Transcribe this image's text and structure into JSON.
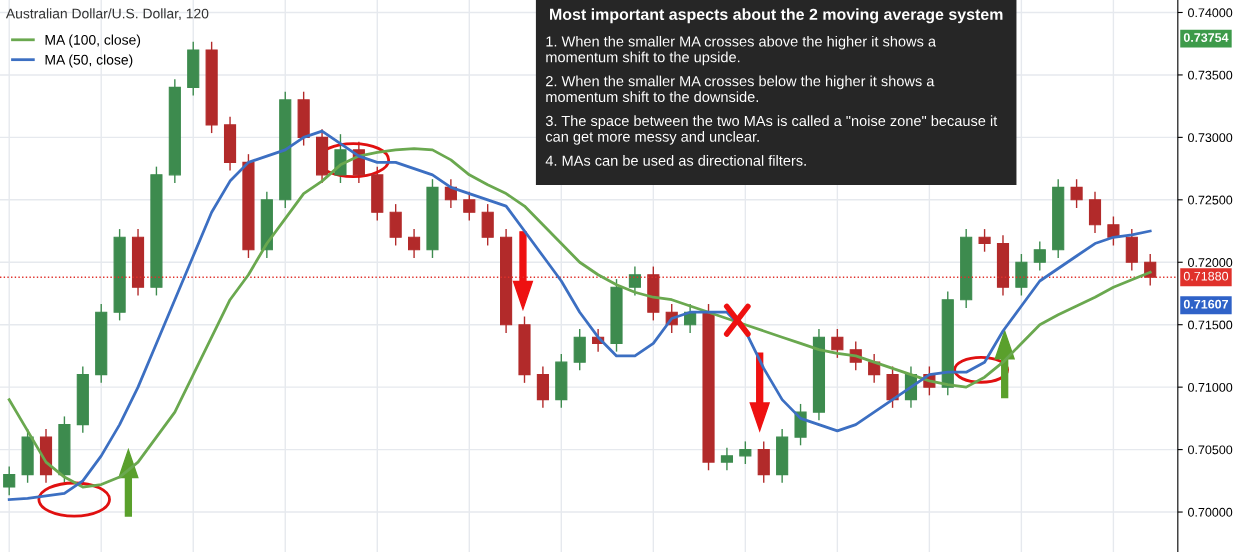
{
  "chart_data": {
    "type": "candlestick",
    "title": "Australian Dollar/U.S. Dollar, 120",
    "categories": [
      null,
      null,
      null,
      null,
      null,
      null,
      null,
      null,
      null,
      null,
      null,
      null,
      null,
      null,
      null,
      null,
      null,
      null,
      null,
      null,
      null,
      null,
      null,
      null,
      null,
      null,
      null,
      null,
      null,
      null,
      null,
      null,
      null,
      null,
      null,
      null,
      null,
      null,
      null,
      null,
      null,
      null,
      null,
      null,
      null,
      null,
      null,
      null,
      null,
      null,
      null,
      null,
      null,
      null,
      null,
      null,
      null,
      null,
      null,
      null,
      null,
      null,
      null
    ],
    "ohlc": [
      [
        0.702,
        0.7036,
        0.7014,
        0.703
      ],
      [
        0.703,
        0.7066,
        0.7024,
        0.706
      ],
      [
        0.706,
        0.7066,
        0.7024,
        0.703
      ],
      [
        0.703,
        0.7076,
        0.7024,
        0.707
      ],
      [
        0.707,
        0.7116,
        0.7064,
        0.711
      ],
      [
        0.711,
        0.7166,
        0.7104,
        0.716
      ],
      [
        0.716,
        0.7226,
        0.7154,
        0.722
      ],
      [
        0.722,
        0.7226,
        0.7174,
        0.718
      ],
      [
        0.718,
        0.7276,
        0.7174,
        0.727
      ],
      [
        0.727,
        0.7346,
        0.7264,
        0.734
      ],
      [
        0.734,
        0.7376,
        0.7334,
        0.737
      ],
      [
        0.737,
        0.7376,
        0.7304,
        0.731
      ],
      [
        0.731,
        0.7316,
        0.7274,
        0.728
      ],
      [
        0.728,
        0.7286,
        0.7204,
        0.721
      ],
      [
        0.721,
        0.7256,
        0.7204,
        0.725
      ],
      [
        0.725,
        0.7336,
        0.7244,
        0.733
      ],
      [
        0.733,
        0.7336,
        0.7294,
        0.73
      ],
      [
        0.73,
        0.7306,
        0.7264,
        0.727
      ],
      [
        0.727,
        0.7302,
        0.7264,
        0.729
      ],
      [
        0.729,
        0.7296,
        0.7264,
        0.727
      ],
      [
        0.727,
        0.7276,
        0.7234,
        0.724
      ],
      [
        0.724,
        0.7246,
        0.7214,
        0.722
      ],
      [
        0.722,
        0.7226,
        0.7204,
        0.721
      ],
      [
        0.721,
        0.7266,
        0.7204,
        0.726
      ],
      [
        0.726,
        0.7266,
        0.7244,
        0.725
      ],
      [
        0.725,
        0.7256,
        0.7234,
        0.724
      ],
      [
        0.724,
        0.7246,
        0.7214,
        0.722
      ],
      [
        0.722,
        0.7226,
        0.7144,
        0.715
      ],
      [
        0.715,
        0.7156,
        0.7104,
        0.711
      ],
      [
        0.711,
        0.7116,
        0.7084,
        0.709
      ],
      [
        0.709,
        0.7126,
        0.7084,
        0.712
      ],
      [
        0.712,
        0.7146,
        0.7114,
        0.714
      ],
      [
        0.714,
        0.7146,
        0.7129,
        0.7135
      ],
      [
        0.7135,
        0.7186,
        0.7129,
        0.718
      ],
      [
        0.718,
        0.7196,
        0.7174,
        0.719
      ],
      [
        0.719,
        0.7196,
        0.7154,
        0.716
      ],
      [
        0.716,
        0.7166,
        0.7144,
        0.715
      ],
      [
        0.715,
        0.7166,
        0.7144,
        0.716
      ],
      [
        0.716,
        0.7166,
        0.7034,
        0.704
      ],
      [
        0.704,
        0.7051,
        0.7034,
        0.7045
      ],
      [
        0.7045,
        0.7056,
        0.7039,
        0.705
      ],
      [
        0.705,
        0.7056,
        0.7024,
        0.703
      ],
      [
        0.703,
        0.7066,
        0.7024,
        0.706
      ],
      [
        0.706,
        0.7086,
        0.7054,
        0.708
      ],
      [
        0.708,
        0.7146,
        0.7074,
        0.714
      ],
      [
        0.714,
        0.7146,
        0.7124,
        0.713
      ],
      [
        0.713,
        0.7136,
        0.7114,
        0.712
      ],
      [
        0.712,
        0.7126,
        0.7104,
        0.711
      ],
      [
        0.711,
        0.7116,
        0.7084,
        0.709
      ],
      [
        0.709,
        0.7116,
        0.7084,
        0.711
      ],
      [
        0.711,
        0.7116,
        0.7094,
        0.71
      ],
      [
        0.71,
        0.7176,
        0.7094,
        0.717
      ],
      [
        0.717,
        0.7226,
        0.7164,
        0.722
      ],
      [
        0.722,
        0.7226,
        0.7209,
        0.7215
      ],
      [
        0.7215,
        0.7221,
        0.7174,
        0.718
      ],
      [
        0.718,
        0.7206,
        0.7174,
        0.72
      ],
      [
        0.72,
        0.7216,
        0.7194,
        0.721
      ],
      [
        0.721,
        0.7266,
        0.7204,
        0.726
      ],
      [
        0.726,
        0.7266,
        0.7244,
        0.725
      ],
      [
        0.725,
        0.7256,
        0.7224,
        0.723
      ],
      [
        0.723,
        0.7236,
        0.7214,
        0.722
      ],
      [
        0.722,
        0.7226,
        0.7194,
        0.72
      ],
      [
        0.72,
        0.7206,
        0.7182,
        0.7188
      ]
    ],
    "series": [
      {
        "name": "MA (100, close)",
        "type": "line",
        "color": "#6aa84f",
        "values": [
          0.709,
          0.7065,
          0.704,
          0.7028,
          0.702,
          0.7022,
          0.7028,
          0.704,
          0.706,
          0.708,
          0.711,
          0.714,
          0.717,
          0.719,
          0.7215,
          0.7235,
          0.7255,
          0.7265,
          0.7278,
          0.7285,
          0.7288,
          0.729,
          0.7291,
          0.729,
          0.7282,
          0.727,
          0.7262,
          0.7255,
          0.7245,
          0.723,
          0.7215,
          0.72,
          0.719,
          0.7182,
          0.7176,
          0.7172,
          0.717,
          0.7165,
          0.716,
          0.7155,
          0.715,
          0.7145,
          0.714,
          0.7135,
          0.713,
          0.7127,
          0.7125,
          0.712,
          0.7115,
          0.711,
          0.7105,
          0.7102,
          0.71,
          0.7108,
          0.712,
          0.7135,
          0.715,
          0.7158,
          0.7165,
          0.7172,
          0.718,
          0.7186,
          0.7192
        ]
      },
      {
        "name": "MA (50, close)",
        "type": "line",
        "color": "#3c6fc2",
        "values": [
          0.701,
          0.7011,
          0.7013,
          0.7015,
          0.7025,
          0.7045,
          0.707,
          0.71,
          0.7135,
          0.717,
          0.7205,
          0.724,
          0.7265,
          0.728,
          0.7285,
          0.729,
          0.73,
          0.7305,
          0.7295,
          0.7285,
          0.728,
          0.728,
          0.7275,
          0.727,
          0.726,
          0.7255,
          0.725,
          0.7245,
          0.7225,
          0.7205,
          0.7185,
          0.716,
          0.714,
          0.7125,
          0.7125,
          0.7135,
          0.7155,
          0.716,
          0.716,
          0.716,
          0.7145,
          0.7115,
          0.709,
          0.7075,
          0.707,
          0.7065,
          0.707,
          0.708,
          0.709,
          0.71,
          0.711,
          0.7112,
          0.7112,
          0.712,
          0.7145,
          0.7165,
          0.7185,
          0.7195,
          0.7205,
          0.7215,
          0.722,
          0.7222,
          0.7225
        ]
      }
    ],
    "ylim": [
      0.6968,
      0.741
    ],
    "yticks": [
      {
        "value": 0.7,
        "label": "0.70000"
      },
      {
        "value": 0.705,
        "label": "0.70500"
      },
      {
        "value": 0.71,
        "label": "0.71000"
      },
      {
        "value": 0.715,
        "label": "0.71500"
      },
      {
        "value": 0.72,
        "label": "0.72000"
      },
      {
        "value": 0.725,
        "label": "0.72500"
      },
      {
        "value": 0.73,
        "label": "0.73000"
      },
      {
        "value": 0.735,
        "label": "0.73500"
      },
      {
        "value": 0.74,
        "label": "0.74000"
      }
    ],
    "ref_lines": [
      {
        "axis": "y",
        "value": 0.7188,
        "label": "0.71880",
        "color": "#e0312b",
        "line_style": "dotted"
      }
    ],
    "annotations": [
      "Most important aspects about the 2 moving average system",
      "1. When the smaller MA crosses above the higher it shows a momentum shift to the upside.",
      "2. When the smaller MA crosses below the higher it shows a momentum shift to the downside.",
      "3. The space between the two MAs is called a \"noise zone\" because it can get more messy and unclear.",
      "4. MAs can be used as directional filters.",
      "0.73754",
      "0.71607"
    ],
    "grid": true,
    "legend": "top left",
    "marker": "none",
    "line_style": "solid"
  }
}
